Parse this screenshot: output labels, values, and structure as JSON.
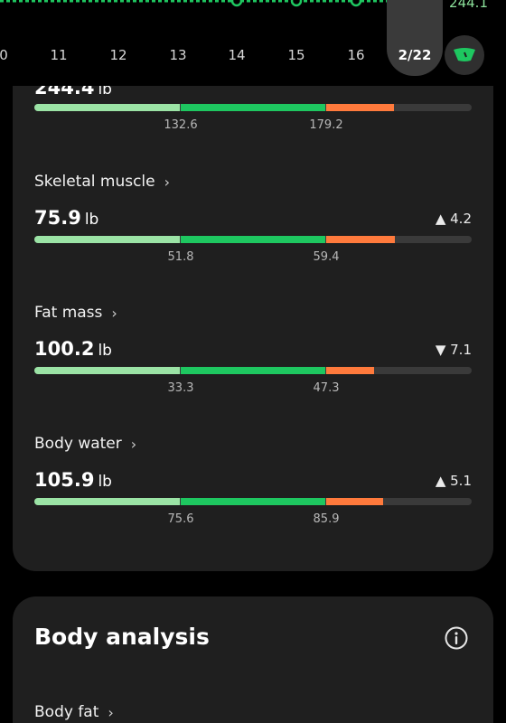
{
  "top_chart": {
    "value_label": "244.1",
    "accent_color": "#1ec760"
  },
  "dates": {
    "items": [
      "0",
      "11",
      "12",
      "13",
      "14",
      "15",
      "16"
    ],
    "selected": "2/22"
  },
  "metrics": [
    {
      "title": "",
      "value": "244.4",
      "unit": "lb",
      "change": "",
      "ticks": [
        "132.6",
        "179.2"
      ]
    },
    {
      "title": "Skeletal muscle",
      "value": "75.9",
      "unit": "lb",
      "change": "▲ 4.2",
      "ticks": [
        "51.8",
        "59.4"
      ]
    },
    {
      "title": "Fat mass",
      "value": "100.2",
      "unit": "lb",
      "change": "▼ 7.1",
      "ticks": [
        "33.3",
        "47.3"
      ]
    },
    {
      "title": "Body water",
      "value": "105.9",
      "unit": "lb",
      "change": "▲ 5.1",
      "ticks": [
        "75.6",
        "85.9"
      ]
    }
  ],
  "body_analysis": {
    "title": "Body analysis",
    "first_item": "Body fat"
  },
  "icons": {
    "chevron": "›",
    "info": "info-icon",
    "scale": "scale-icon"
  }
}
